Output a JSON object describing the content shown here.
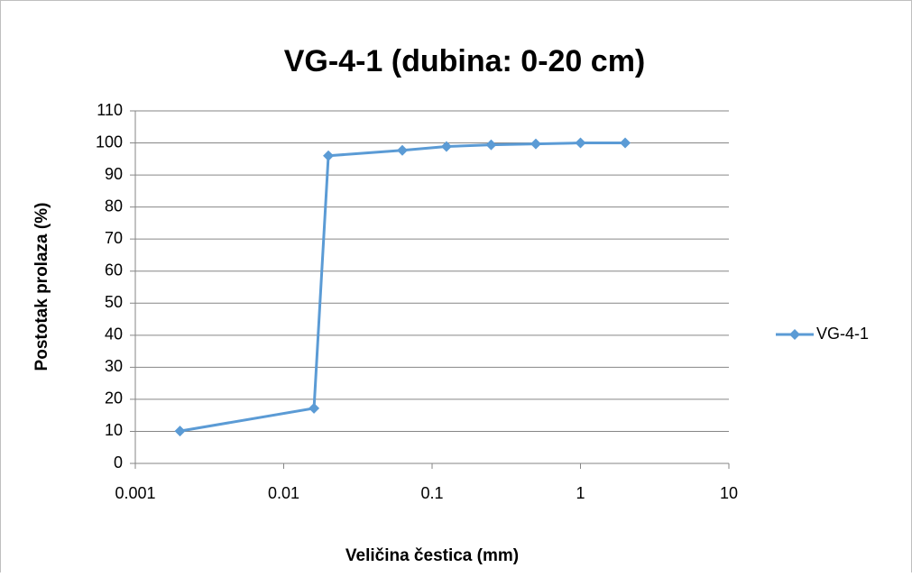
{
  "chart_data": {
    "type": "line",
    "title": "VG-4-1 (dubina: 0-20 cm)",
    "x_label": "Veličina čestica (mm)",
    "y_label": "Postotak prolaza (%)",
    "x": [
      0.002,
      0.016,
      0.02,
      0.063,
      0.125,
      0.25,
      0.5,
      1,
      2
    ],
    "series": [
      {
        "name": "VG-4-1",
        "color": "#5b9bd5",
        "values": [
          10.1,
          17.2,
          96,
          97.7,
          98.9,
          99.4,
          99.7,
          100,
          100
        ]
      }
    ],
    "xscale": "log",
    "xlim": [
      0.001,
      10
    ],
    "xticks": [
      0.001,
      0.01,
      0.1,
      1,
      10
    ],
    "ylim": [
      0,
      110
    ],
    "yticks": [
      0,
      10,
      20,
      30,
      40,
      50,
      60,
      70,
      80,
      90,
      100,
      110
    ],
    "grid": true,
    "legend": "right"
  }
}
